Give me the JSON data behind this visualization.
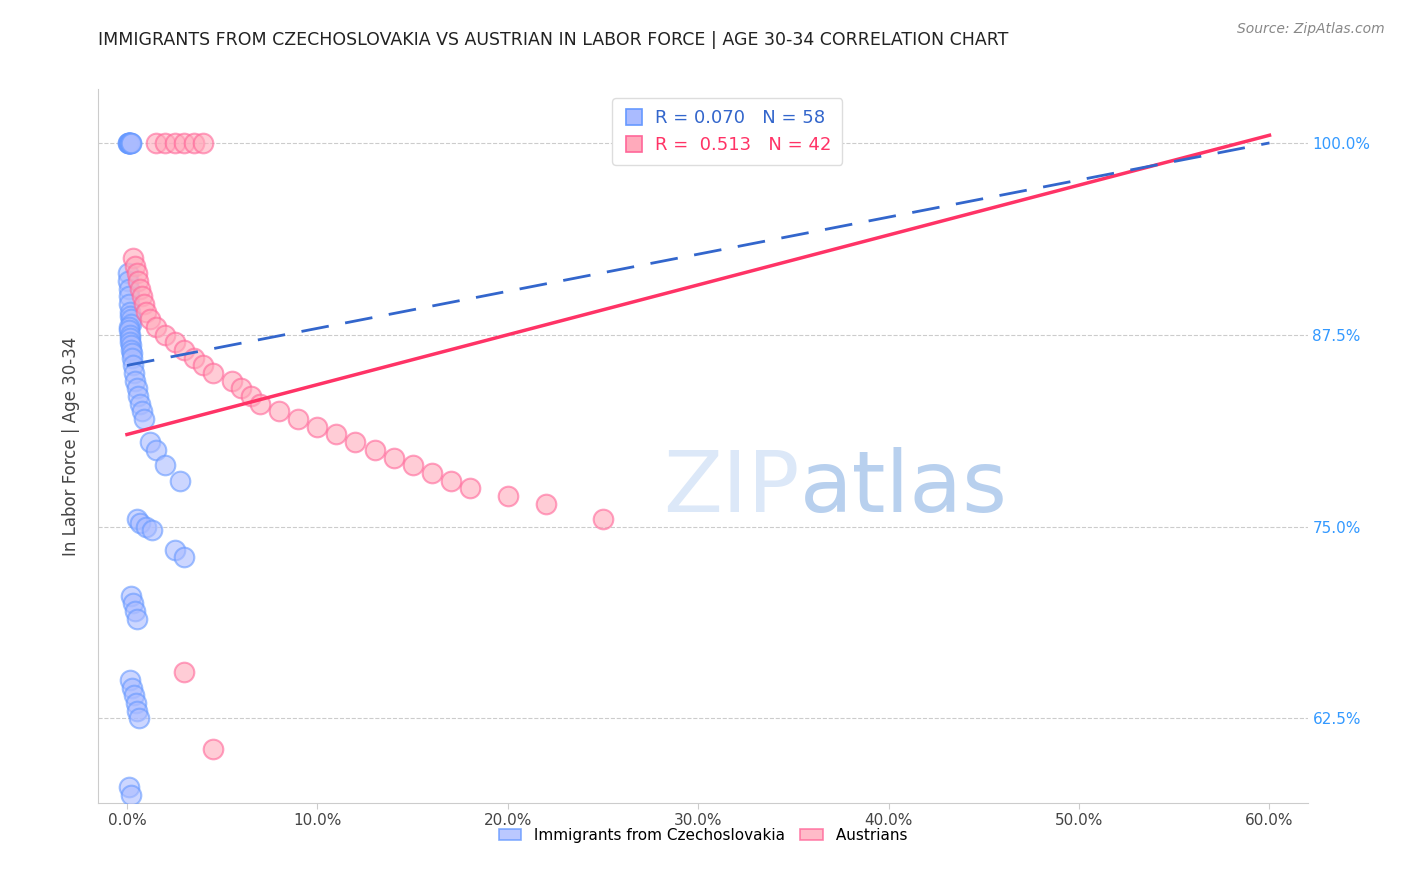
{
  "title": "IMMIGRANTS FROM CZECHOSLOVAKIA VS AUSTRIAN IN LABOR FORCE | AGE 30-34 CORRELATION CHART",
  "source": "Source: ZipAtlas.com",
  "ylabel": "In Labor Force | Age 30-34",
  "xlim": [
    -1.5,
    62.0
  ],
  "ylim": [
    57.0,
    103.5
  ],
  "legend_blue_r": "0.070",
  "legend_blue_n": "58",
  "legend_pink_r": "0.513",
  "legend_pink_n": "42",
  "blue_color": "#6699FF",
  "pink_color": "#FF6699",
  "trend_blue_color": "#3366CC",
  "trend_pink_color": "#FF3366",
  "x_tick_vals": [
    0,
    10,
    20,
    30,
    40,
    50,
    60
  ],
  "x_tick_labs": [
    "0.0%",
    "10.0%",
    "20.0%",
    "30.0%",
    "40.0%",
    "50.0%",
    "60.0%"
  ],
  "y_tick_vals": [
    62.5,
    75.0,
    87.5,
    100.0
  ],
  "y_tick_labs": [
    "62.5%",
    "75.0%",
    "87.5%",
    "100.0%"
  ],
  "blue_trend_x": [
    0,
    60
  ],
  "blue_trend_y": [
    85.5,
    100.0
  ],
  "pink_trend_x": [
    0,
    60
  ],
  "pink_trend_y": [
    81.0,
    100.5
  ],
  "bx": [
    0.05,
    0.07,
    0.08,
    0.1,
    0.12,
    0.13,
    0.15,
    0.18,
    0.2,
    0.22,
    0.05,
    0.07,
    0.09,
    0.11,
    0.13,
    0.15,
    0.17,
    0.19,
    0.21,
    0.1,
    0.12,
    0.14,
    0.16,
    0.18,
    0.2,
    0.22,
    0.25,
    0.28,
    0.3,
    0.35,
    0.4,
    0.5,
    0.6,
    0.7,
    0.8,
    0.9,
    1.2,
    1.5,
    2.0,
    2.8,
    0.5,
    0.7,
    1.0,
    1.3,
    2.5,
    3.0,
    0.2,
    0.3,
    0.4,
    0.5,
    0.15,
    0.25,
    0.35,
    0.45,
    0.55,
    0.65,
    0.1,
    0.2
  ],
  "by": [
    100.0,
    100.0,
    100.0,
    100.0,
    100.0,
    100.0,
    100.0,
    100.0,
    100.0,
    100.0,
    91.5,
    91.0,
    90.5,
    90.0,
    89.5,
    89.0,
    88.7,
    88.5,
    88.2,
    88.0,
    87.8,
    87.5,
    87.3,
    87.0,
    86.8,
    86.5,
    86.3,
    86.0,
    85.5,
    85.0,
    84.5,
    84.0,
    83.5,
    83.0,
    82.5,
    82.0,
    80.5,
    80.0,
    79.0,
    78.0,
    75.5,
    75.2,
    75.0,
    74.8,
    73.5,
    73.0,
    70.5,
    70.0,
    69.5,
    69.0,
    65.0,
    64.5,
    64.0,
    63.5,
    63.0,
    62.5,
    58.0,
    57.5
  ],
  "px": [
    1.5,
    2.0,
    2.5,
    3.0,
    3.5,
    4.0,
    0.3,
    0.4,
    0.5,
    0.6,
    0.7,
    0.8,
    0.9,
    1.0,
    1.2,
    1.5,
    2.0,
    2.5,
    3.0,
    3.5,
    4.0,
    4.5,
    5.5,
    6.0,
    6.5,
    7.0,
    8.0,
    9.0,
    10.0,
    11.0,
    12.0,
    13.0,
    14.0,
    15.0,
    16.0,
    17.0,
    18.0,
    20.0,
    22.0,
    25.0,
    3.0,
    4.5
  ],
  "py": [
    100.0,
    100.0,
    100.0,
    100.0,
    100.0,
    100.0,
    92.5,
    92.0,
    91.5,
    91.0,
    90.5,
    90.0,
    89.5,
    89.0,
    88.5,
    88.0,
    87.5,
    87.0,
    86.5,
    86.0,
    85.5,
    85.0,
    84.5,
    84.0,
    83.5,
    83.0,
    82.5,
    82.0,
    81.5,
    81.0,
    80.5,
    80.0,
    79.5,
    79.0,
    78.5,
    78.0,
    77.5,
    77.0,
    76.5,
    75.5,
    65.5,
    60.5
  ]
}
